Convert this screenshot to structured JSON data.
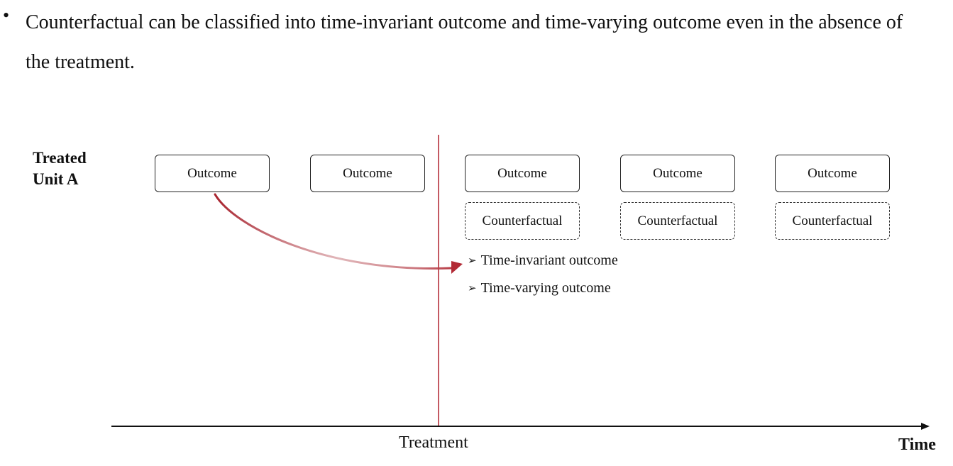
{
  "bullet": {
    "symbol": "•",
    "text": "Counterfactual can be classified into time-invariant outcome and time-varying outcome even in the absence of the treatment."
  },
  "diagram": {
    "row_label": {
      "line1": "Treated",
      "line2": "Unit A"
    },
    "outcome_boxes": [
      "Outcome",
      "Outcome",
      "Outcome",
      "Outcome",
      "Outcome"
    ],
    "counterfactual_boxes": [
      "Counterfactual",
      "Counterfactual",
      "Counterfactual"
    ],
    "sub_items": [
      "Time-invariant outcome",
      "Time-varying outcome"
    ],
    "treatment_label": "Treatment",
    "time_label": "Time",
    "colors": {
      "treatment_line": "#b5303b",
      "curve_arrow": "#b22a35",
      "axis": "#111111",
      "text": "#111111"
    }
  }
}
